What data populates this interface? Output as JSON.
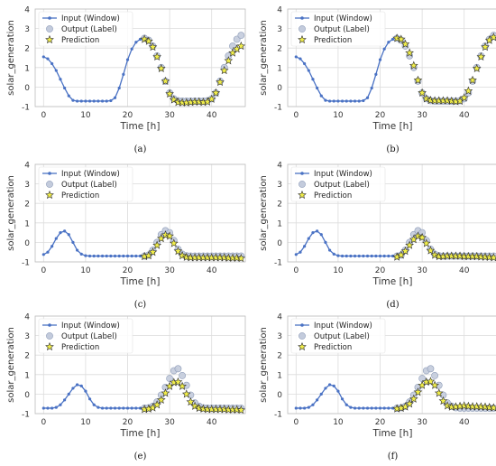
{
  "chart_data": [
    {
      "caption": "(a)",
      "type": "line",
      "ylabel": "solar_generation",
      "xlabel": "Time [h]",
      "xlim": [
        -2,
        48
      ],
      "ylim": [
        -1,
        4
      ],
      "xticks": [
        0,
        10,
        20,
        30,
        40
      ],
      "yticks": [
        -1,
        0,
        1,
        2,
        3,
        4
      ],
      "grid": true,
      "legend_position": "top-left",
      "series": [
        {
          "name": "Input (Window)",
          "x": [
            0,
            1,
            2,
            3,
            4,
            5,
            6,
            7,
            8,
            9,
            10,
            11,
            12,
            13,
            14,
            15,
            16,
            17,
            18,
            19,
            20,
            21,
            22,
            23
          ],
          "values": [
            1.55,
            1.45,
            1.2,
            0.85,
            0.4,
            -0.05,
            -0.45,
            -0.68,
            -0.72,
            -0.72,
            -0.72,
            -0.72,
            -0.72,
            -0.72,
            -0.72,
            -0.72,
            -0.7,
            -0.55,
            -0.05,
            0.65,
            1.4,
            1.95,
            2.3,
            2.45
          ]
        },
        {
          "name": "Output (Label)",
          "x": [
            24,
            25,
            26,
            27,
            28,
            29,
            30,
            31,
            32,
            33,
            34,
            35,
            36,
            37,
            38,
            39,
            40,
            41,
            42,
            43,
            44,
            45,
            46,
            47
          ],
          "values": [
            2.5,
            2.4,
            2.1,
            1.6,
            1.0,
            0.3,
            -0.3,
            -0.6,
            -0.7,
            -0.72,
            -0.72,
            -0.72,
            -0.72,
            -0.72,
            -0.72,
            -0.7,
            -0.6,
            -0.3,
            0.3,
            1.0,
            1.6,
            2.1,
            2.45,
            2.65
          ]
        },
        {
          "name": "Prediction",
          "x": [
            24,
            25,
            26,
            27,
            28,
            29,
            30,
            31,
            32,
            33,
            34,
            35,
            36,
            37,
            38,
            39,
            40,
            41,
            42,
            43,
            44,
            45,
            46,
            47
          ],
          "values": [
            2.45,
            2.35,
            2.05,
            1.55,
            0.95,
            0.3,
            -0.35,
            -0.65,
            -0.78,
            -0.8,
            -0.8,
            -0.78,
            -0.76,
            -0.76,
            -0.78,
            -0.76,
            -0.62,
            -0.3,
            0.25,
            0.85,
            1.35,
            1.75,
            1.95,
            2.1
          ]
        }
      ]
    },
    {
      "caption": "(b)",
      "type": "line",
      "ylabel": "solar_generation",
      "xlabel": "Time [h]",
      "xlim": [
        -2,
        48
      ],
      "ylim": [
        -1,
        4
      ],
      "xticks": [
        0,
        10,
        20,
        30,
        40
      ],
      "yticks": [
        -1,
        0,
        1,
        2,
        3,
        4
      ],
      "grid": true,
      "legend_position": "top-left",
      "series": [
        {
          "name": "Input (Window)",
          "x": [
            0,
            1,
            2,
            3,
            4,
            5,
            6,
            7,
            8,
            9,
            10,
            11,
            12,
            13,
            14,
            15,
            16,
            17,
            18,
            19,
            20,
            21,
            22,
            23
          ],
          "values": [
            1.55,
            1.45,
            1.2,
            0.85,
            0.4,
            -0.05,
            -0.45,
            -0.68,
            -0.72,
            -0.72,
            -0.72,
            -0.72,
            -0.72,
            -0.72,
            -0.72,
            -0.72,
            -0.7,
            -0.55,
            -0.05,
            0.65,
            1.4,
            1.95,
            2.3,
            2.45
          ]
        },
        {
          "name": "Output (Label)",
          "x": [
            24,
            25,
            26,
            27,
            28,
            29,
            30,
            31,
            32,
            33,
            34,
            35,
            36,
            37,
            38,
            39,
            40,
            41,
            42,
            43,
            44,
            45,
            46,
            47
          ],
          "values": [
            2.5,
            2.4,
            2.1,
            1.6,
            1.0,
            0.3,
            -0.3,
            -0.6,
            -0.7,
            -0.72,
            -0.72,
            -0.72,
            -0.72,
            -0.72,
            -0.72,
            -0.7,
            -0.6,
            -0.3,
            0.3,
            1.0,
            1.6,
            2.1,
            2.45,
            2.65
          ]
        },
        {
          "name": "Prediction",
          "x": [
            24,
            25,
            26,
            27,
            28,
            29,
            30,
            31,
            32,
            33,
            34,
            35,
            36,
            37,
            38,
            39,
            40,
            41,
            42,
            43,
            44,
            45,
            46,
            47
          ],
          "values": [
            2.5,
            2.45,
            2.2,
            1.75,
            1.1,
            0.35,
            -0.3,
            -0.6,
            -0.68,
            -0.7,
            -0.7,
            -0.7,
            -0.7,
            -0.72,
            -0.74,
            -0.72,
            -0.55,
            -0.2,
            0.35,
            0.95,
            1.55,
            2.05,
            2.4,
            2.55
          ]
        }
      ]
    },
    {
      "caption": "(c)",
      "type": "line",
      "ylabel": "solar_generation",
      "xlabel": "Time [h]",
      "xlim": [
        -2,
        48
      ],
      "ylim": [
        -1,
        4
      ],
      "xticks": [
        0,
        10,
        20,
        30,
        40
      ],
      "yticks": [
        -1,
        0,
        1,
        2,
        3,
        4
      ],
      "grid": true,
      "legend_position": "top-left",
      "series": [
        {
          "name": "Input (Window)",
          "x": [
            0,
            1,
            2,
            3,
            4,
            5,
            6,
            7,
            8,
            9,
            10,
            11,
            12,
            13,
            14,
            15,
            16,
            17,
            18,
            19,
            20,
            21,
            22,
            23
          ],
          "values": [
            -0.62,
            -0.5,
            -0.2,
            0.2,
            0.5,
            0.58,
            0.4,
            0.0,
            -0.4,
            -0.6,
            -0.68,
            -0.7,
            -0.7,
            -0.7,
            -0.7,
            -0.7,
            -0.7,
            -0.7,
            -0.7,
            -0.7,
            -0.7,
            -0.7,
            -0.7,
            -0.7
          ]
        },
        {
          "name": "Output (Label)",
          "x": [
            24,
            25,
            26,
            27,
            28,
            29,
            30,
            31,
            32,
            33,
            34,
            35,
            36,
            37,
            38,
            39,
            40,
            41,
            42,
            43,
            44,
            45,
            46,
            47
          ],
          "values": [
            -0.7,
            -0.65,
            -0.4,
            0.0,
            0.4,
            0.6,
            0.5,
            0.1,
            -0.35,
            -0.6,
            -0.68,
            -0.7,
            -0.7,
            -0.7,
            -0.7,
            -0.7,
            -0.7,
            -0.7,
            -0.7,
            -0.7,
            -0.7,
            -0.7,
            -0.7,
            -0.7
          ]
        },
        {
          "name": "Prediction",
          "x": [
            24,
            25,
            26,
            27,
            28,
            29,
            30,
            31,
            32,
            33,
            34,
            35,
            36,
            37,
            38,
            39,
            40,
            41,
            42,
            43,
            44,
            45,
            46,
            47
          ],
          "values": [
            -0.72,
            -0.68,
            -0.5,
            -0.15,
            0.2,
            0.38,
            0.32,
            -0.05,
            -0.45,
            -0.68,
            -0.76,
            -0.78,
            -0.78,
            -0.78,
            -0.78,
            -0.78,
            -0.78,
            -0.78,
            -0.78,
            -0.78,
            -0.8,
            -0.8,
            -0.8,
            -0.82
          ]
        }
      ]
    },
    {
      "caption": "(d)",
      "type": "line",
      "ylabel": "solar_generation",
      "xlabel": "Time [h]",
      "xlim": [
        -2,
        48
      ],
      "ylim": [
        -1,
        4
      ],
      "xticks": [
        0,
        10,
        20,
        30,
        40
      ],
      "yticks": [
        -1,
        0,
        1,
        2,
        3,
        4
      ],
      "grid": true,
      "legend_position": "top-left",
      "series": [
        {
          "name": "Input (Window)",
          "x": [
            0,
            1,
            2,
            3,
            4,
            5,
            6,
            7,
            8,
            9,
            10,
            11,
            12,
            13,
            14,
            15,
            16,
            17,
            18,
            19,
            20,
            21,
            22,
            23
          ],
          "values": [
            -0.62,
            -0.5,
            -0.2,
            0.2,
            0.5,
            0.58,
            0.4,
            0.0,
            -0.4,
            -0.6,
            -0.68,
            -0.7,
            -0.7,
            -0.7,
            -0.7,
            -0.7,
            -0.7,
            -0.7,
            -0.7,
            -0.7,
            -0.7,
            -0.7,
            -0.7,
            -0.7
          ]
        },
        {
          "name": "Output (Label)",
          "x": [
            24,
            25,
            26,
            27,
            28,
            29,
            30,
            31,
            32,
            33,
            34,
            35,
            36,
            37,
            38,
            39,
            40,
            41,
            42,
            43,
            44,
            45,
            46,
            47
          ],
          "values": [
            -0.7,
            -0.65,
            -0.4,
            0.0,
            0.4,
            0.6,
            0.5,
            0.1,
            -0.35,
            -0.6,
            -0.68,
            -0.7,
            -0.7,
            -0.7,
            -0.7,
            -0.7,
            -0.7,
            -0.7,
            -0.7,
            -0.7,
            -0.7,
            -0.7,
            -0.7,
            -0.7
          ]
        },
        {
          "name": "Prediction",
          "x": [
            24,
            25,
            26,
            27,
            28,
            29,
            30,
            31,
            32,
            33,
            34,
            35,
            36,
            37,
            38,
            39,
            40,
            41,
            42,
            43,
            44,
            45,
            46,
            47
          ],
          "values": [
            -0.75,
            -0.65,
            -0.45,
            -0.15,
            0.15,
            0.32,
            0.25,
            -0.05,
            -0.42,
            -0.65,
            -0.72,
            -0.72,
            -0.7,
            -0.7,
            -0.7,
            -0.7,
            -0.72,
            -0.72,
            -0.72,
            -0.72,
            -0.74,
            -0.75,
            -0.76,
            -0.78
          ]
        }
      ]
    },
    {
      "caption": "(e)",
      "type": "line",
      "ylabel": "solar_generation",
      "xlabel": "Time [h]",
      "xlim": [
        -2,
        48
      ],
      "ylim": [
        -1,
        4
      ],
      "xticks": [
        0,
        10,
        20,
        30,
        40
      ],
      "yticks": [
        -1,
        0,
        1,
        2,
        3,
        4
      ],
      "grid": true,
      "legend_position": "top-left",
      "series": [
        {
          "name": "Input (Window)",
          "x": [
            0,
            1,
            2,
            3,
            4,
            5,
            6,
            7,
            8,
            9,
            10,
            11,
            12,
            13,
            14,
            15,
            16,
            17,
            18,
            19,
            20,
            21,
            22,
            23
          ],
          "values": [
            -0.72,
            -0.72,
            -0.72,
            -0.68,
            -0.55,
            -0.3,
            0.0,
            0.3,
            0.48,
            0.42,
            0.15,
            -0.25,
            -0.55,
            -0.68,
            -0.72,
            -0.72,
            -0.72,
            -0.72,
            -0.72,
            -0.72,
            -0.72,
            -0.72,
            -0.72,
            -0.72
          ]
        },
        {
          "name": "Output (Label)",
          "x": [
            24,
            25,
            26,
            27,
            28,
            29,
            30,
            31,
            32,
            33,
            34,
            35,
            36,
            37,
            38,
            39,
            40,
            41,
            42,
            43,
            44,
            45,
            46,
            47
          ],
          "values": [
            -0.72,
            -0.7,
            -0.62,
            -0.4,
            -0.05,
            0.35,
            0.8,
            1.2,
            1.3,
            0.95,
            0.45,
            -0.05,
            -0.45,
            -0.62,
            -0.7,
            -0.72,
            -0.72,
            -0.72,
            -0.72,
            -0.72,
            -0.72,
            -0.72,
            -0.72,
            -0.72
          ]
        },
        {
          "name": "Prediction",
          "x": [
            24,
            25,
            26,
            27,
            28,
            29,
            30,
            31,
            32,
            33,
            34,
            35,
            36,
            37,
            38,
            39,
            40,
            41,
            42,
            43,
            44,
            45,
            46,
            47
          ],
          "values": [
            -0.78,
            -0.76,
            -0.7,
            -0.55,
            -0.3,
            0.05,
            0.4,
            0.6,
            0.62,
            0.4,
            0.0,
            -0.4,
            -0.62,
            -0.72,
            -0.76,
            -0.78,
            -0.78,
            -0.78,
            -0.78,
            -0.78,
            -0.8,
            -0.8,
            -0.8,
            -0.82
          ]
        }
      ]
    },
    {
      "caption": "(f)",
      "type": "line",
      "ylabel": "solar_generation",
      "xlabel": "Time [h]",
      "xlim": [
        -2,
        48
      ],
      "ylim": [
        -1,
        4
      ],
      "xticks": [
        0,
        10,
        20,
        30,
        40
      ],
      "yticks": [
        -1,
        0,
        1,
        2,
        3,
        4
      ],
      "grid": true,
      "legend_position": "top-left",
      "series": [
        {
          "name": "Input (Window)",
          "x": [
            0,
            1,
            2,
            3,
            4,
            5,
            6,
            7,
            8,
            9,
            10,
            11,
            12,
            13,
            14,
            15,
            16,
            17,
            18,
            19,
            20,
            21,
            22,
            23
          ],
          "values": [
            -0.72,
            -0.72,
            -0.72,
            -0.68,
            -0.55,
            -0.3,
            0.0,
            0.3,
            0.48,
            0.42,
            0.15,
            -0.25,
            -0.55,
            -0.68,
            -0.72,
            -0.72,
            -0.72,
            -0.72,
            -0.72,
            -0.72,
            -0.72,
            -0.72,
            -0.72,
            -0.72
          ]
        },
        {
          "name": "Output (Label)",
          "x": [
            24,
            25,
            26,
            27,
            28,
            29,
            30,
            31,
            32,
            33,
            34,
            35,
            36,
            37,
            38,
            39,
            40,
            41,
            42,
            43,
            44,
            45,
            46,
            47
          ],
          "values": [
            -0.72,
            -0.7,
            -0.62,
            -0.4,
            -0.05,
            0.35,
            0.8,
            1.2,
            1.3,
            0.95,
            0.45,
            -0.05,
            -0.45,
            -0.62,
            -0.7,
            -0.72,
            -0.72,
            -0.72,
            -0.72,
            -0.72,
            -0.72,
            -0.72,
            -0.72,
            -0.72
          ]
        },
        {
          "name": "Prediction",
          "x": [
            24,
            25,
            26,
            27,
            28,
            29,
            30,
            31,
            32,
            33,
            34,
            35,
            36,
            37,
            38,
            39,
            40,
            41,
            42,
            43,
            44,
            45,
            46,
            47
          ],
          "values": [
            -0.75,
            -0.72,
            -0.65,
            -0.5,
            -0.25,
            0.1,
            0.45,
            0.62,
            0.65,
            0.45,
            0.05,
            -0.35,
            -0.6,
            -0.66,
            -0.65,
            -0.62,
            -0.6,
            -0.62,
            -0.64,
            -0.64,
            -0.65,
            -0.66,
            -0.68,
            -0.7
          ]
        }
      ]
    }
  ],
  "colors": {
    "input": "#4a72c4",
    "output_fill": "#c3cbdc",
    "output_edge": "#8e9cb8",
    "prediction_fill": "#f1ee4a",
    "prediction_edge": "#2e2e2e",
    "grid": "#dcdcdc",
    "axis_text": "#333333"
  }
}
